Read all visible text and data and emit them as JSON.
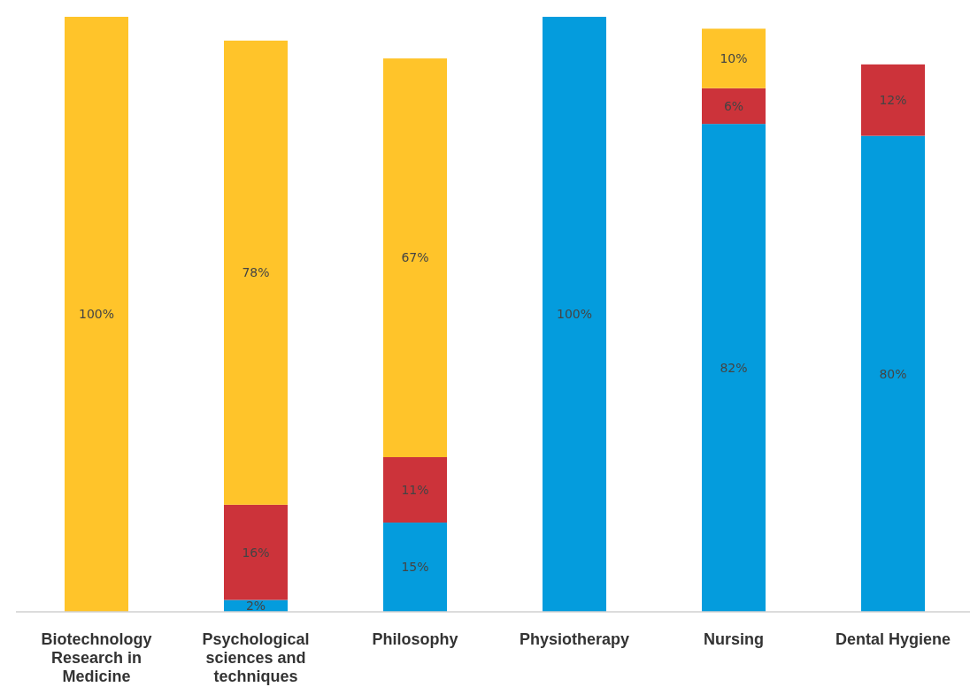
{
  "chart_data": {
    "type": "bar",
    "stacked": true,
    "categories": [
      "Biotechnology Research in Medicine",
      "Psychological sciences and techniques",
      "Philosophy",
      "Physiotherapy",
      "Nursing",
      "Dental Hygiene"
    ],
    "ylim": [
      0,
      100
    ],
    "tick_labels": "x",
    "series": [
      {
        "color": "#049cdd",
        "values": [
          null,
          2,
          15,
          100,
          82,
          80
        ],
        "value_labels": [
          null,
          "2%",
          "15%",
          "100%",
          "82%",
          "80%"
        ]
      },
      {
        "color": "#cc333a",
        "values": [
          null,
          16,
          11,
          null,
          6,
          12
        ],
        "value_labels": [
          null,
          "16%",
          "11%",
          null,
          "6%",
          "12%"
        ]
      },
      {
        "color": "#ffc42a",
        "values": [
          100,
          78,
          67,
          null,
          10,
          null
        ],
        "value_labels": [
          "100%",
          "78%",
          "67%",
          null,
          "10%",
          null
        ]
      }
    ]
  }
}
